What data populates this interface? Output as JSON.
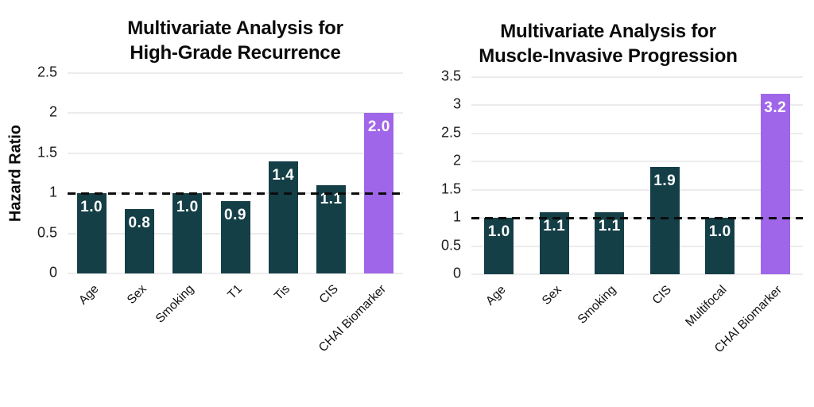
{
  "figure": {
    "background": "#ffffff",
    "grid_color": "#ececec",
    "reference_line_color": "#0c0c0c",
    "tick_label_color": "#1c1c1c"
  },
  "chart_data": [
    {
      "type": "bar",
      "title": "Multivariate Analysis for High-Grade Recurrence",
      "title_line1": "Multivariate Analysis for",
      "title_line2": "High-Grade Recurrence",
      "ylabel": "Hazard Ratio",
      "xlabel": "",
      "categories": [
        "Age",
        "Sex",
        "Smoking",
        "T1",
        "Tis",
        "CIS",
        "CHAI Biomarker"
      ],
      "values": [
        1.0,
        0.8,
        1.0,
        0.9,
        1.4,
        1.1,
        2.0
      ],
      "bar_value_labels": [
        "1.0",
        "0.8",
        "1.0",
        "0.9",
        "1.4",
        "1.1",
        "2.0"
      ],
      "ylim": [
        0,
        2.5
      ],
      "yticks": [
        0,
        0.5,
        1,
        1.5,
        2,
        2.5
      ],
      "ytick_labels": [
        "0",
        "0.5",
        "1",
        "1.5",
        "2",
        "2.5"
      ],
      "reference_line_y": 1,
      "reference_line_style": "dashed",
      "grid": "horizontal",
      "legend": "none",
      "bar_color": "#153f47",
      "highlight_index": 6,
      "highlight_category": "CHAI Biomarker",
      "highlight_color": "#a066e9",
      "value_label_color": "#ffffff"
    },
    {
      "type": "bar",
      "title": "Multivariate Analysis for Muscle-Invasive Progression",
      "title_line1": "Multivariate Analysis for",
      "title_line2": "Muscle-Invasive Progression",
      "ylabel": "",
      "xlabel": "",
      "categories": [
        "Age",
        "Sex",
        "Smoking",
        "CIS",
        "Multifocal",
        "CHAI Biomarker"
      ],
      "values": [
        1.0,
        1.1,
        1.1,
        1.9,
        1.0,
        3.2
      ],
      "bar_value_labels": [
        "1.0",
        "1.1",
        "1.1",
        "1.9",
        "1.0",
        "3.2"
      ],
      "ylim": [
        0,
        3.5
      ],
      "yticks": [
        0,
        0.5,
        1,
        1.5,
        2,
        2.5,
        3,
        3.5
      ],
      "ytick_labels": [
        "0",
        "0.5",
        "1",
        "1.5",
        "2",
        "2.5",
        "3",
        "3.5"
      ],
      "reference_line_y": 1,
      "reference_line_style": "dashed",
      "grid": "horizontal",
      "legend": "none",
      "bar_color": "#153f47",
      "highlight_index": 5,
      "highlight_category": "CHAI Biomarker",
      "highlight_color": "#a066e9",
      "value_label_color": "#ffffff"
    }
  ]
}
